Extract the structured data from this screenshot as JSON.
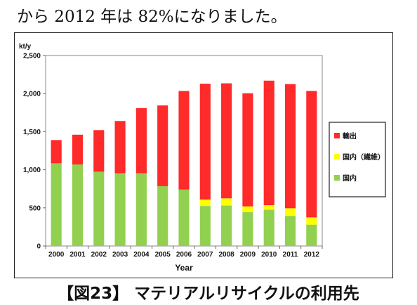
{
  "intro_text": "から 2012 年は 82%になりました。",
  "caption": "【図23】 マテリアルリサイクルの利用先",
  "chart_data": {
    "type": "bar",
    "stacked": true,
    "unit_label": "kt/y",
    "xlabel": "Year",
    "ylabel": "",
    "ylim": [
      0,
      2500
    ],
    "yticks": [
      0,
      500,
      1000,
      1500,
      2000,
      2500
    ],
    "ytick_labels": [
      "0",
      "500",
      "1,000",
      "1,500",
      "2,000",
      "2,500"
    ],
    "categories": [
      "2000",
      "2001",
      "2002",
      "2003",
      "2004",
      "2005",
      "2006",
      "2007",
      "2008",
      "2009",
      "2010",
      "2011",
      "2012"
    ],
    "legend_position": "right",
    "grid": false,
    "series": [
      {
        "name": "国内",
        "color": "#92d050",
        "values": [
          1085,
          1070,
          975,
          955,
          955,
          785,
          740,
          525,
          530,
          445,
          475,
          395,
          280
        ]
      },
      {
        "name": "国内（繊維）",
        "color": "#ffff00",
        "values": [
          0,
          0,
          0,
          0,
          0,
          0,
          0,
          85,
          95,
          75,
          60,
          100,
          95
        ]
      },
      {
        "name": "輸出",
        "color": "#ff2a2a",
        "values": [
          305,
          390,
          545,
          685,
          855,
          1060,
          1295,
          1520,
          1510,
          1485,
          1635,
          1630,
          1660
        ]
      }
    ],
    "legend_order": [
      2,
      1,
      0
    ]
  }
}
